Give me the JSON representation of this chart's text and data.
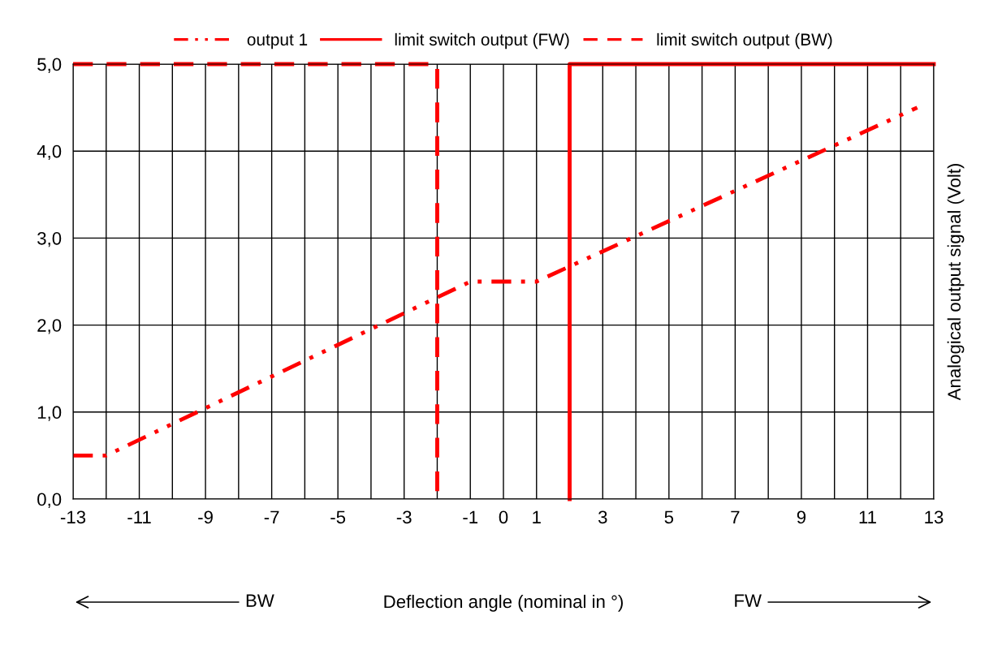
{
  "chart_data": {
    "type": "line",
    "xlabel": "Deflection angle (nominal in °)",
    "ylabel": "Analogical output signal (Volt)",
    "series": [
      {
        "name": "output 1",
        "color": "#ff0000",
        "line_style": "dashdotdot",
        "x": [
          -13,
          -12,
          -1,
          1,
          12.5
        ],
        "values": [
          0.5,
          0.5,
          2.5,
          2.5,
          4.5
        ]
      },
      {
        "name": "limit switch output (FW)",
        "color": "#ff0000",
        "line_style": "solid",
        "x": [
          2,
          2,
          13
        ],
        "values": [
          0,
          5,
          5
        ]
      },
      {
        "name": "limit switch output (BW)",
        "color": "#ff0000",
        "line_style": "dashed",
        "x": [
          -13,
          -2,
          -2
        ],
        "values": [
          5,
          5,
          0
        ]
      }
    ],
    "xlim": [
      -13,
      13
    ],
    "xticks": [
      -13,
      {
        "value": -12,
        "label": null
      },
      -11,
      {
        "value": -10,
        "label": null
      },
      -9,
      {
        "value": -8,
        "label": null
      },
      -7,
      {
        "value": -6,
        "label": null
      },
      -5,
      {
        "value": -4,
        "label": null
      },
      -3,
      {
        "value": -2,
        "label": null
      },
      -1,
      0,
      1,
      {
        "value": 2,
        "label": null
      },
      3,
      {
        "value": 4,
        "label": null
      },
      5,
      {
        "value": 6,
        "label": null
      },
      7,
      {
        "value": 8,
        "label": null
      },
      9,
      {
        "value": 10,
        "label": null
      },
      11,
      {
        "value": 12,
        "label": null
      },
      13
    ],
    "ylim": [
      0,
      5
    ],
    "yticks": [
      {
        "value": 0,
        "label": "0,0"
      },
      {
        "value": 1,
        "label": "1,0"
      },
      {
        "value": 2,
        "label": "2,0"
      },
      {
        "value": 3,
        "label": "3,0"
      },
      {
        "value": 4,
        "label": "4,0"
      },
      {
        "value": 5,
        "label": "5,0"
      }
    ],
    "grid": true,
    "legend": "top",
    "annotations": [
      "BW",
      "FW"
    ]
  }
}
